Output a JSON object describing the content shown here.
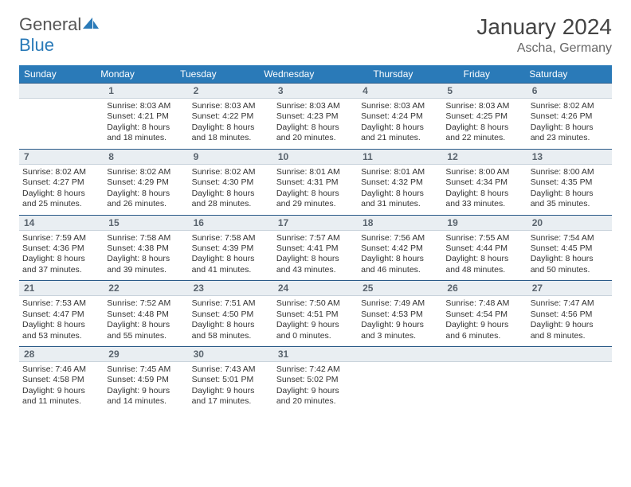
{
  "logo": {
    "part1": "General",
    "part2": "Blue"
  },
  "title": "January 2024",
  "location": "Ascha, Germany",
  "colors": {
    "header_bg": "#2a7ab8",
    "header_text": "#ffffff",
    "daynum_bg": "#e9eef2",
    "daynum_border_top": "#2a5a88",
    "daynum_text": "#5a646e",
    "body_text": "#333333"
  },
  "dow": [
    "Sunday",
    "Monday",
    "Tuesday",
    "Wednesday",
    "Thursday",
    "Friday",
    "Saturday"
  ],
  "weeks": [
    {
      "nums": [
        "",
        "1",
        "2",
        "3",
        "4",
        "5",
        "6"
      ],
      "cells": [
        null,
        {
          "sunrise": "Sunrise: 8:03 AM",
          "sunset": "Sunset: 4:21 PM",
          "daylight": "Daylight: 8 hours and 18 minutes."
        },
        {
          "sunrise": "Sunrise: 8:03 AM",
          "sunset": "Sunset: 4:22 PM",
          "daylight": "Daylight: 8 hours and 18 minutes."
        },
        {
          "sunrise": "Sunrise: 8:03 AM",
          "sunset": "Sunset: 4:23 PM",
          "daylight": "Daylight: 8 hours and 20 minutes."
        },
        {
          "sunrise": "Sunrise: 8:03 AM",
          "sunset": "Sunset: 4:24 PM",
          "daylight": "Daylight: 8 hours and 21 minutes."
        },
        {
          "sunrise": "Sunrise: 8:03 AM",
          "sunset": "Sunset: 4:25 PM",
          "daylight": "Daylight: 8 hours and 22 minutes."
        },
        {
          "sunrise": "Sunrise: 8:02 AM",
          "sunset": "Sunset: 4:26 PM",
          "daylight": "Daylight: 8 hours and 23 minutes."
        }
      ]
    },
    {
      "nums": [
        "7",
        "8",
        "9",
        "10",
        "11",
        "12",
        "13"
      ],
      "cells": [
        {
          "sunrise": "Sunrise: 8:02 AM",
          "sunset": "Sunset: 4:27 PM",
          "daylight": "Daylight: 8 hours and 25 minutes."
        },
        {
          "sunrise": "Sunrise: 8:02 AM",
          "sunset": "Sunset: 4:29 PM",
          "daylight": "Daylight: 8 hours and 26 minutes."
        },
        {
          "sunrise": "Sunrise: 8:02 AM",
          "sunset": "Sunset: 4:30 PM",
          "daylight": "Daylight: 8 hours and 28 minutes."
        },
        {
          "sunrise": "Sunrise: 8:01 AM",
          "sunset": "Sunset: 4:31 PM",
          "daylight": "Daylight: 8 hours and 29 minutes."
        },
        {
          "sunrise": "Sunrise: 8:01 AM",
          "sunset": "Sunset: 4:32 PM",
          "daylight": "Daylight: 8 hours and 31 minutes."
        },
        {
          "sunrise": "Sunrise: 8:00 AM",
          "sunset": "Sunset: 4:34 PM",
          "daylight": "Daylight: 8 hours and 33 minutes."
        },
        {
          "sunrise": "Sunrise: 8:00 AM",
          "sunset": "Sunset: 4:35 PM",
          "daylight": "Daylight: 8 hours and 35 minutes."
        }
      ]
    },
    {
      "nums": [
        "14",
        "15",
        "16",
        "17",
        "18",
        "19",
        "20"
      ],
      "cells": [
        {
          "sunrise": "Sunrise: 7:59 AM",
          "sunset": "Sunset: 4:36 PM",
          "daylight": "Daylight: 8 hours and 37 minutes."
        },
        {
          "sunrise": "Sunrise: 7:58 AM",
          "sunset": "Sunset: 4:38 PM",
          "daylight": "Daylight: 8 hours and 39 minutes."
        },
        {
          "sunrise": "Sunrise: 7:58 AM",
          "sunset": "Sunset: 4:39 PM",
          "daylight": "Daylight: 8 hours and 41 minutes."
        },
        {
          "sunrise": "Sunrise: 7:57 AM",
          "sunset": "Sunset: 4:41 PM",
          "daylight": "Daylight: 8 hours and 43 minutes."
        },
        {
          "sunrise": "Sunrise: 7:56 AM",
          "sunset": "Sunset: 4:42 PM",
          "daylight": "Daylight: 8 hours and 46 minutes."
        },
        {
          "sunrise": "Sunrise: 7:55 AM",
          "sunset": "Sunset: 4:44 PM",
          "daylight": "Daylight: 8 hours and 48 minutes."
        },
        {
          "sunrise": "Sunrise: 7:54 AM",
          "sunset": "Sunset: 4:45 PM",
          "daylight": "Daylight: 8 hours and 50 minutes."
        }
      ]
    },
    {
      "nums": [
        "21",
        "22",
        "23",
        "24",
        "25",
        "26",
        "27"
      ],
      "cells": [
        {
          "sunrise": "Sunrise: 7:53 AM",
          "sunset": "Sunset: 4:47 PM",
          "daylight": "Daylight: 8 hours and 53 minutes."
        },
        {
          "sunrise": "Sunrise: 7:52 AM",
          "sunset": "Sunset: 4:48 PM",
          "daylight": "Daylight: 8 hours and 55 minutes."
        },
        {
          "sunrise": "Sunrise: 7:51 AM",
          "sunset": "Sunset: 4:50 PM",
          "daylight": "Daylight: 8 hours and 58 minutes."
        },
        {
          "sunrise": "Sunrise: 7:50 AM",
          "sunset": "Sunset: 4:51 PM",
          "daylight": "Daylight: 9 hours and 0 minutes."
        },
        {
          "sunrise": "Sunrise: 7:49 AM",
          "sunset": "Sunset: 4:53 PM",
          "daylight": "Daylight: 9 hours and 3 minutes."
        },
        {
          "sunrise": "Sunrise: 7:48 AM",
          "sunset": "Sunset: 4:54 PM",
          "daylight": "Daylight: 9 hours and 6 minutes."
        },
        {
          "sunrise": "Sunrise: 7:47 AM",
          "sunset": "Sunset: 4:56 PM",
          "daylight": "Daylight: 9 hours and 8 minutes."
        }
      ]
    },
    {
      "nums": [
        "28",
        "29",
        "30",
        "31",
        "",
        "",
        ""
      ],
      "cells": [
        {
          "sunrise": "Sunrise: 7:46 AM",
          "sunset": "Sunset: 4:58 PM",
          "daylight": "Daylight: 9 hours and 11 minutes."
        },
        {
          "sunrise": "Sunrise: 7:45 AM",
          "sunset": "Sunset: 4:59 PM",
          "daylight": "Daylight: 9 hours and 14 minutes."
        },
        {
          "sunrise": "Sunrise: 7:43 AM",
          "sunset": "Sunset: 5:01 PM",
          "daylight": "Daylight: 9 hours and 17 minutes."
        },
        {
          "sunrise": "Sunrise: 7:42 AM",
          "sunset": "Sunset: 5:02 PM",
          "daylight": "Daylight: 9 hours and 20 minutes."
        },
        null,
        null,
        null
      ]
    }
  ]
}
